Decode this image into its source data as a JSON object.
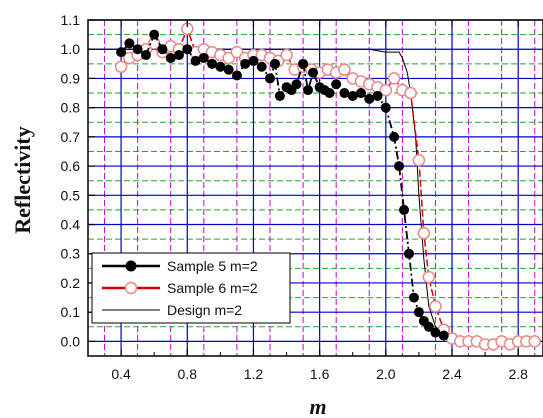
{
  "chart_data": {
    "type": "line",
    "title": "",
    "xlabel": "m",
    "ylabel": "Reflectivity",
    "xlim": [
      0.2,
      2.95
    ],
    "ylim": [
      -0.05,
      1.1
    ],
    "x_ticks": [
      "0.4",
      "0.8",
      "1.2",
      "1.6",
      "2.0",
      "2.4",
      "2.8"
    ],
    "x_tick_values": [
      0.4,
      0.8,
      1.2,
      1.6,
      2.0,
      2.4,
      2.8
    ],
    "y_ticks": [
      "0.0",
      "0.1",
      "0.2",
      "0.3",
      "0.4",
      "0.5",
      "0.6",
      "0.7",
      "0.8",
      "0.9",
      "1.0",
      "1.1"
    ],
    "y_tick_values": [
      0.0,
      0.1,
      0.2,
      0.3,
      0.4,
      0.5,
      0.6,
      0.7,
      0.8,
      0.9,
      1.0,
      1.1
    ],
    "grid": true,
    "legend_position": "bottom-left",
    "colors": {
      "major_grid": "#0000cc",
      "minor_grid_x": "#cc00cc",
      "minor_grid_y": "#22aa22",
      "sample5": "#000000",
      "sample6_line": "#dd0000",
      "sample6_marker": "#e88888",
      "design": "#000000"
    },
    "series": [
      {
        "name": "Sample 5 m=2",
        "style": "filled-circle-dashdot",
        "x": [
          0.4,
          0.45,
          0.5,
          0.55,
          0.6,
          0.65,
          0.7,
          0.75,
          0.8,
          0.85,
          0.9,
          0.95,
          1.0,
          1.05,
          1.1,
          1.15,
          1.2,
          1.25,
          1.3,
          1.33,
          1.36,
          1.4,
          1.43,
          1.46,
          1.5,
          1.53,
          1.56,
          1.6,
          1.63,
          1.66,
          1.7,
          1.75,
          1.8,
          1.85,
          1.9,
          1.95,
          2.0,
          2.05,
          2.08,
          2.11,
          2.14,
          2.17,
          2.2,
          2.23,
          2.26,
          2.3,
          2.35
        ],
        "y": [
          0.99,
          1.02,
          1.0,
          0.98,
          1.05,
          1.0,
          0.97,
          0.98,
          1.0,
          0.96,
          0.97,
          0.95,
          0.94,
          0.93,
          0.91,
          0.95,
          0.96,
          0.94,
          0.9,
          0.95,
          0.84,
          0.87,
          0.86,
          0.88,
          0.95,
          0.86,
          0.92,
          0.87,
          0.86,
          0.85,
          0.88,
          0.85,
          0.84,
          0.85,
          0.83,
          0.84,
          0.8,
          0.7,
          0.6,
          0.45,
          0.3,
          0.15,
          0.1,
          0.07,
          0.05,
          0.03,
          0.02
        ]
      },
      {
        "name": "Sample 6 m=2",
        "style": "open-circle-dashed",
        "x": [
          0.4,
          0.45,
          0.5,
          0.55,
          0.6,
          0.65,
          0.7,
          0.75,
          0.8,
          0.85,
          0.9,
          0.95,
          1.0,
          1.05,
          1.1,
          1.15,
          1.2,
          1.25,
          1.3,
          1.35,
          1.4,
          1.45,
          1.5,
          1.55,
          1.6,
          1.65,
          1.7,
          1.75,
          1.8,
          1.85,
          1.9,
          1.95,
          2.0,
          2.05,
          2.1,
          2.15,
          2.2,
          2.23,
          2.26,
          2.3,
          2.35,
          2.4,
          2.45,
          2.5,
          2.55,
          2.6,
          2.65,
          2.7,
          2.75,
          2.8,
          2.85,
          2.9
        ],
        "y": [
          0.94,
          0.97,
          0.98,
          1.0,
          1.02,
          0.99,
          1.01,
          1.0,
          1.07,
          0.99,
          1.0,
          0.99,
          0.98,
          0.97,
          0.99,
          0.97,
          0.98,
          0.98,
          0.97,
          0.96,
          0.98,
          0.93,
          0.94,
          0.93,
          0.92,
          0.93,
          0.92,
          0.93,
          0.9,
          0.89,
          0.88,
          0.87,
          0.86,
          0.9,
          0.86,
          0.85,
          0.62,
          0.37,
          0.22,
          0.12,
          0.04,
          0.01,
          0.0,
          0.0,
          0.0,
          -0.01,
          -0.01,
          0.0,
          -0.01,
          0.0,
          0.0,
          0.0
        ]
      },
      {
        "name": "Design m=2",
        "style": "solid-thin",
        "x": [
          0.2,
          1.9,
          2.0,
          2.08,
          2.1,
          2.13,
          2.15,
          2.18,
          2.2,
          2.23,
          2.26,
          2.3,
          2.35,
          2.4,
          2.5,
          2.6,
          2.7,
          2.8,
          2.95
        ],
        "y": [
          1.0,
          1.0,
          0.99,
          0.99,
          0.97,
          0.92,
          0.85,
          0.7,
          0.5,
          0.28,
          0.12,
          0.05,
          0.03,
          0.02,
          0.01,
          0.0,
          0.0,
          0.0,
          0.0
        ]
      }
    ]
  }
}
